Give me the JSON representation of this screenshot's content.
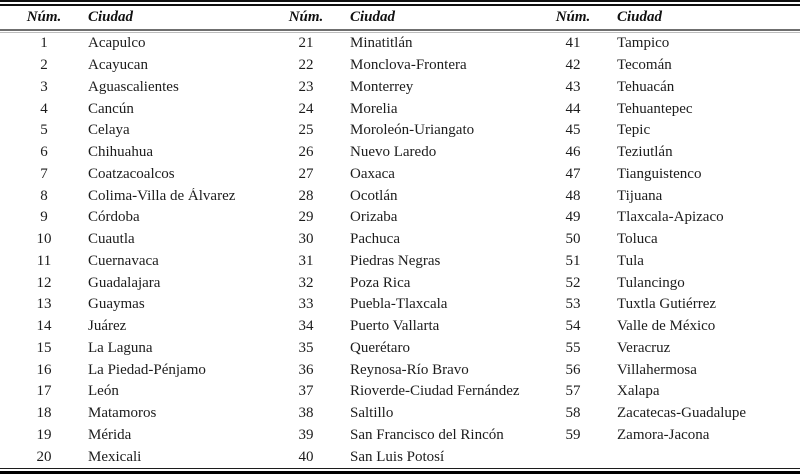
{
  "table": {
    "groups": [
      {
        "num_header": "Núm.",
        "city_header": "Ciudad",
        "rows": [
          {
            "num": "1",
            "city": "Acapulco"
          },
          {
            "num": "2",
            "city": "Acayucan"
          },
          {
            "num": "3",
            "city": "Aguascalientes"
          },
          {
            "num": "4",
            "city": "Cancún"
          },
          {
            "num": "5",
            "city": "Celaya"
          },
          {
            "num": "6",
            "city": "Chihuahua"
          },
          {
            "num": "7",
            "city": "Coatzacoalcos"
          },
          {
            "num": "8",
            "city": "Colima-Villa de Álvarez"
          },
          {
            "num": "9",
            "city": "Córdoba"
          },
          {
            "num": "10",
            "city": "Cuautla"
          },
          {
            "num": "11",
            "city": "Cuernavaca"
          },
          {
            "num": "12",
            "city": "Guadalajara"
          },
          {
            "num": "13",
            "city": "Guaymas"
          },
          {
            "num": "14",
            "city": "Juárez"
          },
          {
            "num": "15",
            "city": "La Laguna"
          },
          {
            "num": "16",
            "city": "La Piedad-Pénjamo"
          },
          {
            "num": "17",
            "city": "León"
          },
          {
            "num": "18",
            "city": "Matamoros"
          },
          {
            "num": "19",
            "city": "Mérida"
          },
          {
            "num": "20",
            "city": "Mexicali"
          }
        ]
      },
      {
        "num_header": "Núm.",
        "city_header": "Ciudad",
        "rows": [
          {
            "num": "21",
            "city": "Minatitlán"
          },
          {
            "num": "22",
            "city": "Monclova-Frontera"
          },
          {
            "num": "23",
            "city": "Monterrey"
          },
          {
            "num": "24",
            "city": "Morelia"
          },
          {
            "num": "25",
            "city": "Moroleón-Uriangato"
          },
          {
            "num": "26",
            "city": "Nuevo Laredo"
          },
          {
            "num": "27",
            "city": "Oaxaca"
          },
          {
            "num": "28",
            "city": "Ocotlán"
          },
          {
            "num": "29",
            "city": "Orizaba"
          },
          {
            "num": "30",
            "city": "Pachuca"
          },
          {
            "num": "31",
            "city": "Piedras Negras"
          },
          {
            "num": "32",
            "city": "Poza Rica"
          },
          {
            "num": "33",
            "city": "Puebla-Tlaxcala"
          },
          {
            "num": "34",
            "city": "Puerto Vallarta"
          },
          {
            "num": "35",
            "city": "Querétaro"
          },
          {
            "num": "36",
            "city": "Reynosa-Río Bravo"
          },
          {
            "num": "37",
            "city": "Rioverde-Ciudad Fernández"
          },
          {
            "num": "38",
            "city": "Saltillo"
          },
          {
            "num": "39",
            "city": "San Francisco del Rincón"
          },
          {
            "num": "40",
            "city": "San Luis Potosí"
          }
        ]
      },
      {
        "num_header": "Núm.",
        "city_header": "Ciudad",
        "rows": [
          {
            "num": "41",
            "city": "Tampico"
          },
          {
            "num": "42",
            "city": "Tecomán"
          },
          {
            "num": "43",
            "city": "Tehuacán"
          },
          {
            "num": "44",
            "city": "Tehuantepec"
          },
          {
            "num": "45",
            "city": "Tepic"
          },
          {
            "num": "46",
            "city": "Teziutlán"
          },
          {
            "num": "47",
            "city": "Tianguistenco"
          },
          {
            "num": "48",
            "city": "Tijuana"
          },
          {
            "num": "49",
            "city": "Tlaxcala-Apizaco"
          },
          {
            "num": "50",
            "city": "Toluca"
          },
          {
            "num": "51",
            "city": "Tula"
          },
          {
            "num": "52",
            "city": "Tulancingo"
          },
          {
            "num": "53",
            "city": "Tuxtla Gutiérrez"
          },
          {
            "num": "54",
            "city": "Valle de México"
          },
          {
            "num": "55",
            "city": "Veracruz"
          },
          {
            "num": "56",
            "city": "Villahermosa"
          },
          {
            "num": "57",
            "city": "Xalapa"
          },
          {
            "num": "58",
            "city": "Zacatecas-Guadalupe"
          },
          {
            "num": "59",
            "city": "Zamora-Jacona"
          }
        ]
      }
    ]
  }
}
